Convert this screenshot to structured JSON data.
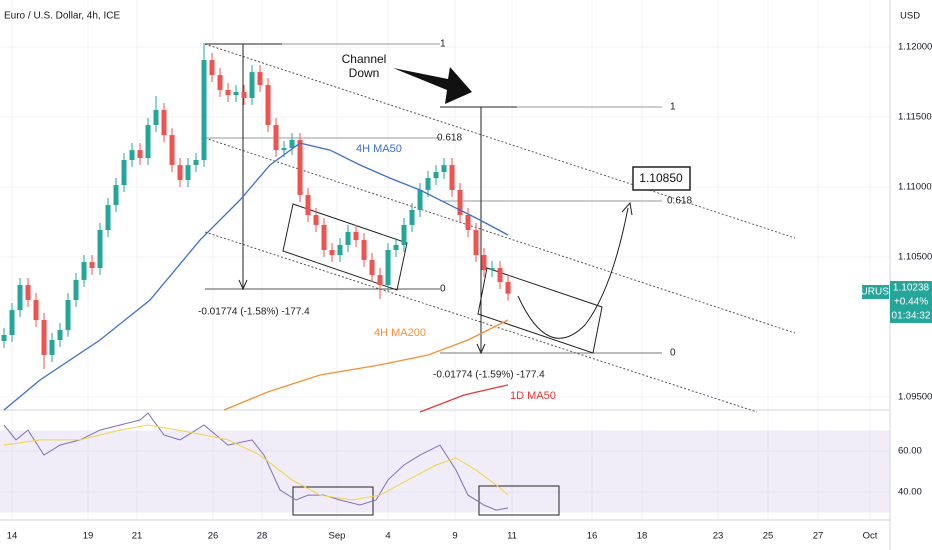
{
  "chart_data": [
    {
      "type": "candlestick",
      "title": "Euro / U.S. Dollar, 4h, ICE",
      "currency": "USD",
      "symbol": "EURUSD",
      "last_price": {
        "value": 1.10238,
        "label": "1.10238",
        "change": "+0.44%",
        "countdown": "01:34:32"
      },
      "up_color": "#26a69a",
      "down_color": "#ef5350",
      "open": [
        1.099,
        1.09943,
        1.10121,
        1.103,
        1.10193,
        1.1005,
        1.098,
        1.09907,
        1.09979,
        1.10193,
        1.10336,
        1.10464,
        1.10421,
        1.10693,
        1.10871,
        1.11014,
        1.11193,
        1.11264,
        1.11207,
        1.11443,
        1.1155,
        1.11371,
        1.11157,
        1.1105,
        1.11157,
        1.11193,
        1.11907,
        1.118,
        1.11693,
        1.11657,
        1.11679,
        1.11636,
        1.11821,
        1.11729,
        1.11443,
        1.11264,
        1.11279,
        1.11336,
        1.10943,
        1.108,
        1.10729,
        1.1055,
        1.10514,
        1.10586,
        1.10679,
        1.10621,
        1.10479,
        1.10371,
        1.103,
        1.1055,
        1.10586,
        1.10729,
        1.10836,
        1.10979,
        1.11064,
        1.11107,
        1.11157,
        1.10979,
        1.108,
        1.10693,
        1.10514,
        1.10407,
        1.10421,
        1.10321
      ],
      "high": [
        1.09993,
        1.10171,
        1.1035,
        1.1035,
        1.10243,
        1.101,
        1.09957,
        1.10029,
        1.10243,
        1.10386,
        1.10514,
        1.10514,
        1.10743,
        1.10921,
        1.11064,
        1.11243,
        1.11314,
        1.11314,
        1.11493,
        1.1165,
        1.116,
        1.11421,
        1.11207,
        1.11207,
        1.11243,
        1.1203,
        1.11957,
        1.1185,
        1.11743,
        1.11729,
        1.11729,
        1.11871,
        1.11871,
        1.11779,
        1.11493,
        1.11329,
        1.11386,
        1.11386,
        1.10993,
        1.1085,
        1.10779,
        1.106,
        1.10636,
        1.10729,
        1.10729,
        1.10671,
        1.10529,
        1.10421,
        1.106,
        1.10636,
        1.10779,
        1.10886,
        1.11029,
        1.11114,
        1.11157,
        1.11207,
        1.11207,
        1.11029,
        1.1085,
        1.10743,
        1.10564,
        1.10471,
        1.10471,
        1.10371
      ],
      "low": [
        1.0985,
        1.09893,
        1.10071,
        1.10143,
        1.1,
        1.097,
        1.0975,
        1.09857,
        1.09929,
        1.10143,
        1.10286,
        1.10371,
        1.10371,
        1.10643,
        1.10821,
        1.10964,
        1.11143,
        1.11157,
        1.11157,
        1.11393,
        1.11321,
        1.11107,
        1.11,
        1.11,
        1.11107,
        1.11143,
        1.1175,
        1.11643,
        1.11607,
        1.11607,
        1.11586,
        1.11586,
        1.11679,
        1.11393,
        1.11214,
        1.11214,
        1.11229,
        1.10893,
        1.1075,
        1.10679,
        1.105,
        1.10464,
        1.10464,
        1.10536,
        1.10571,
        1.10429,
        1.10321,
        1.102,
        1.1025,
        1.105,
        1.10536,
        1.10679,
        1.10786,
        1.10929,
        1.11014,
        1.11057,
        1.10929,
        1.1075,
        1.10643,
        1.10464,
        1.10357,
        1.10357,
        1.10271,
        1.10188
      ],
      "close": [
        1.09943,
        1.10121,
        1.103,
        1.10193,
        1.1005,
        1.098,
        1.09907,
        1.09979,
        1.10193,
        1.10336,
        1.10464,
        1.10421,
        1.10693,
        1.10871,
        1.11014,
        1.11193,
        1.11264,
        1.11207,
        1.11443,
        1.1155,
        1.11371,
        1.11157,
        1.1105,
        1.11157,
        1.11193,
        1.11907,
        1.118,
        1.11693,
        1.11657,
        1.11679,
        1.11636,
        1.11821,
        1.11729,
        1.11443,
        1.11264,
        1.11279,
        1.11336,
        1.10943,
        1.108,
        1.10729,
        1.1055,
        1.10514,
        1.10586,
        1.10679,
        1.10621,
        1.10479,
        1.10371,
        1.103,
        1.1055,
        1.10586,
        1.10729,
        1.10836,
        1.10979,
        1.11064,
        1.11107,
        1.11157,
        1.10979,
        1.108,
        1.10693,
        1.10514,
        1.10407,
        1.10421,
        1.10321,
        1.10238
      ],
      "series": [
        {
          "name": "4H MA50",
          "color": "#3d6fd1",
          "x": [
            0,
            4.5,
            12,
            18.25,
            24.5,
            29.5,
            33.25,
            37,
            40.75,
            44.5,
            48.25,
            52,
            55.75,
            59.5,
            63
          ],
          "values": [
            1.09407,
            1.09621,
            1.09907,
            1.10193,
            1.10621,
            1.10907,
            1.11157,
            1.11314,
            1.11264,
            1.11157,
            1.11064,
            1.10979,
            1.10871,
            1.10764,
            1.10657
          ]
        },
        {
          "name": "4H MA200",
          "color": "#f0913a",
          "x": [
            27.5,
            33,
            39.5,
            47,
            53,
            58,
            63
          ],
          "values": [
            1.09407,
            1.09536,
            1.09657,
            1.09729,
            1.098,
            1.09907,
            1.1005
          ]
        },
        {
          "name": "1D MA50",
          "color": "#e53935",
          "x": [
            52,
            57.5,
            63
          ],
          "values": [
            1.09393,
            1.09514,
            1.09586
          ]
        }
      ],
      "ylim": [
        1.09407,
        1.12336
      ],
      "yticks": [
        {
          "value": 1.12,
          "label": "1.12000"
        },
        {
          "value": 1.115,
          "label": "1.11500"
        },
        {
          "value": 1.11,
          "label": "1.11000"
        },
        {
          "value": 1.105,
          "label": "1.10500"
        },
        {
          "value": 1.095,
          "label": "1.09500"
        }
      ],
      "annotations": [
        "Channel",
        "Down",
        "1.10850",
        "1",
        "0.618",
        "0",
        "1",
        "0.618",
        "0",
        "-0.01774 (-1.58%) -177.4",
        "-0.01774 (-1.59%) -177.4"
      ],
      "grid": true
    },
    {
      "type": "line",
      "band": [
        30,
        70
      ],
      "series": [
        {
          "color": "#7e6fb8",
          "x": [
            0,
            1.5,
            3,
            5,
            7,
            9.5,
            12,
            14.5,
            17,
            18,
            20,
            22,
            24,
            25,
            26.5,
            28,
            31,
            32.5,
            34.5,
            36.5,
            38,
            40,
            42,
            44.5,
            46.5,
            48,
            50,
            52,
            54.5,
            56.5,
            58,
            60,
            61.5,
            63
          ],
          "values": [
            72.7,
            65.4,
            70.2,
            58.0,
            62.9,
            65.4,
            70.2,
            72.7,
            75.1,
            78.5,
            67.8,
            65.4,
            70.2,
            72.7,
            67.8,
            62.9,
            65.4,
            58.0,
            41.0,
            36.1,
            38.5,
            38.5,
            36.1,
            33.7,
            36.1,
            45.9,
            53.2,
            58.0,
            62.9,
            50.7,
            38.5,
            33.7,
            31.2,
            32.2
          ]
        },
        {
          "color": "#f2d14b",
          "x": [
            0,
            4.5,
            9.5,
            14.5,
            18,
            23,
            28,
            32,
            36,
            39.5,
            43.5,
            47,
            50.5,
            54,
            56.5,
            59,
            62,
            63
          ],
          "values": [
            62.9,
            65.4,
            65.4,
            70.2,
            72.7,
            69.3,
            65.4,
            58.0,
            45.9,
            38.5,
            36.1,
            38.5,
            45.9,
            53.2,
            56.6,
            50.7,
            42.0,
            38.5
          ]
        }
      ],
      "ylim": [
        28.8,
        80
      ],
      "yticks": [
        {
          "value": 60,
          "label": "60.00"
        },
        {
          "value": 40,
          "label": "40.00"
        }
      ],
      "x_labels": [
        "14",
        "19",
        "21",
        "26",
        "28",
        "Sep",
        "4",
        "9",
        "11",
        "16",
        "18",
        "23",
        "25",
        "27",
        "Oct"
      ],
      "grid": true
    }
  ]
}
